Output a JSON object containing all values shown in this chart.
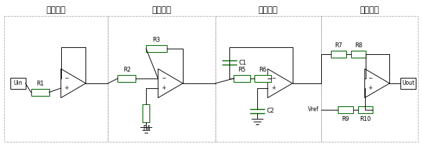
{
  "sections": [
    "跟随部分",
    "放大部分",
    "滤波部分",
    "偏置部分"
  ],
  "bg_color": "#ffffff",
  "line_color": "#000000",
  "resistor_color": "#006600",
  "dashed_color": "#999999",
  "title_fontsize": 8.5,
  "label_fontsize": 6
}
